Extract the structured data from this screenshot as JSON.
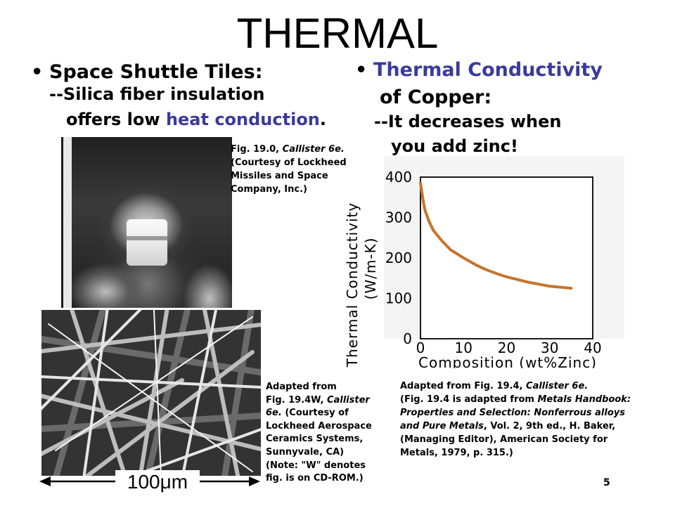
{
  "slide": {
    "title": "THERMAL",
    "page_number": "5"
  },
  "left": {
    "heading": "Space Shuttle Tiles:",
    "line1": "--Silica fiber insulation",
    "line2_start": "offers low ",
    "line2_highlight": "heat conduction",
    "line2_end": ".",
    "photo_caption": {
      "line1_start": "Fig. 19.0, ",
      "line1_italic": "Callister 6e.",
      "line2": "(Courtesy of Lockheed",
      "line3": "Missiles and Space",
      "line4": "Company, Inc.)"
    },
    "fiber_caption": {
      "line1": "Adapted from",
      "line2_start": "Fig. 19.4W, ",
      "line2_italic": "Callister",
      "line3_italic": "6e.",
      "line3_end": "  (Courtesy of",
      "line4": "Lockheed Aerospace",
      "line5": "Ceramics Systems,",
      "line6": "Sunnyvale, CA)",
      "line7": "(Note:  \"W\" denotes",
      "line8": "fig. is on CD-ROM.)"
    },
    "scale_label": "100μm"
  },
  "right": {
    "heading_line1": "Thermal Conductivity",
    "heading_line2": "of Copper:",
    "line1": "--It decreases when",
    "line2": "you add zinc!",
    "chart_caption": {
      "line1_start": "Adapted from Fig. 19.4, ",
      "line1_italic": "Callister 6e.",
      "line2_start": "(Fig. 19.4 is adapted from ",
      "line2_italic": "Metals Handbook:",
      "line3_italic": "Properties and Selection: Nonferrous alloys",
      "line4_italic": "and Pure Metals",
      "line4_end": ", Vol. 2, 9th ed., H. Baker,",
      "line5": "(Managing Editor), American Society for",
      "line6": "Metals, 1979, p. 315.)"
    }
  },
  "colors": {
    "accent_blue": "#3a3a9e",
    "curve": "#c8742a"
  },
  "chart_data": {
    "type": "line",
    "title": "",
    "xlabel": "Composition (wt%Zinc)",
    "ylabel_line1": "Thermal Conductivity",
    "ylabel_line2": "(W/m-K)",
    "xlim": [
      0,
      40
    ],
    "ylim": [
      0,
      400
    ],
    "x_ticks": [
      0,
      10,
      20,
      30,
      40
    ],
    "y_ticks": [
      0,
      100,
      200,
      300,
      400
    ],
    "grid": false,
    "series": [
      {
        "x": [
          0,
          0.5,
          1,
          2,
          3,
          5,
          7,
          10,
          13,
          15,
          18,
          20,
          25,
          30,
          35
        ],
        "y": [
          385,
          350,
          320,
          290,
          268,
          242,
          220,
          200,
          182,
          172,
          160,
          153,
          140,
          130,
          125
        ]
      }
    ]
  }
}
